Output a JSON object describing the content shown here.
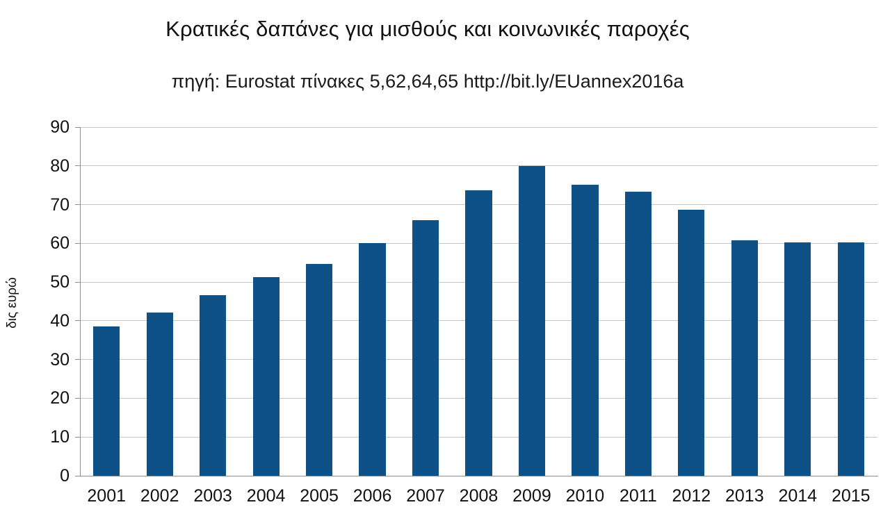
{
  "chart_data": {
    "type": "bar",
    "title": "Κρατικές δαπάνες για μισθούς και κοινωνικές παροχές",
    "subtitle": "πηγή: Eurostat πίνακες 5,62,64,65 http://bit.ly/EUannex2016a",
    "ylabel": "δις ευρώ",
    "xlabel": "",
    "categories": [
      "2001",
      "2002",
      "2003",
      "2004",
      "2005",
      "2006",
      "2007",
      "2008",
      "2009",
      "2010",
      "2011",
      "2012",
      "2013",
      "2014",
      "2015"
    ],
    "values": [
      38.5,
      42.2,
      46.6,
      51.2,
      54.6,
      60.0,
      66.0,
      73.7,
      80.0,
      75.2,
      73.3,
      68.7,
      60.8,
      60.3,
      60.3
    ],
    "ylim": [
      0,
      90
    ],
    "ytick_step": 10,
    "grid": true,
    "legend": false,
    "bar_color": "#0e5187",
    "grid_color": "#c6c6c6",
    "axis_color": "#8e8e8e",
    "text_color": "#111111"
  }
}
